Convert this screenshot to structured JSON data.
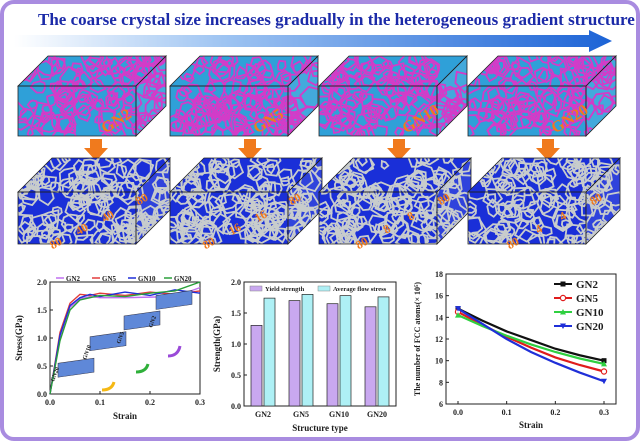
{
  "title": "The coarse crystal size increases gradually in the heterogeneous gradient structure",
  "colors": {
    "grain_top": "#2fa0d8",
    "boundary_top": "#d23cc8",
    "grain_bottom": "#1a2fd8",
    "boundary_bottom": "#c8cccc",
    "accent": "#f07a1d",
    "title": "#1b2aa8"
  },
  "samples": [
    "GN2",
    "GN5",
    "GN10",
    "GN20"
  ],
  "dimensions": [
    [
      "80",
      "40",
      "40",
      "80"
    ],
    [
      "80",
      "16",
      "16",
      "80"
    ],
    [
      "80",
      "8",
      "8",
      "80"
    ],
    [
      "80",
      "4",
      "4",
      "80"
    ]
  ],
  "chart_data": [
    {
      "type": "line",
      "xlabel": "Strain",
      "ylabel": "Stress(GPa)",
      "xlim": [
        0.0,
        0.3
      ],
      "ylim": [
        0.0,
        2.0
      ],
      "xticks": [
        "0.0",
        "0.1",
        "0.2",
        "0.3"
      ],
      "yticks": [
        "0.0",
        "0.5",
        "1.0",
        "1.5",
        "2.0"
      ],
      "series": [
        {
          "name": "GN2",
          "color": "#c070f0",
          "x": [
            0,
            0.02,
            0.04,
            0.06,
            0.08,
            0.1,
            0.15,
            0.2,
            0.25,
            0.3
          ],
          "y": [
            0,
            1.0,
            1.55,
            1.7,
            1.74,
            1.72,
            1.72,
            1.73,
            1.74,
            1.9
          ]
        },
        {
          "name": "GN5",
          "color": "#e23c3c",
          "x": [
            0,
            0.02,
            0.04,
            0.06,
            0.08,
            0.1,
            0.15,
            0.2,
            0.25,
            0.3
          ],
          "y": [
            0,
            1.1,
            1.62,
            1.78,
            1.76,
            1.8,
            1.76,
            1.82,
            1.78,
            1.84
          ]
        },
        {
          "name": "GN10",
          "color": "#1f2fd8",
          "x": [
            0,
            0.02,
            0.04,
            0.06,
            0.08,
            0.1,
            0.15,
            0.2,
            0.25,
            0.3
          ],
          "y": [
            0,
            1.05,
            1.58,
            1.72,
            1.78,
            1.74,
            1.82,
            1.76,
            1.86,
            1.8
          ]
        },
        {
          "name": "GN20",
          "color": "#2aa03a",
          "x": [
            0,
            0.02,
            0.04,
            0.06,
            0.08,
            0.1,
            0.15,
            0.2,
            0.25,
            0.3
          ],
          "y": [
            0,
            0.95,
            1.5,
            1.68,
            1.72,
            1.76,
            1.74,
            1.8,
            1.84,
            2.0
          ]
        }
      ],
      "inset_labels": [
        "GN20",
        "GN10",
        "GN5",
        "GN2"
      ]
    },
    {
      "type": "bar",
      "xlabel": "Structure type",
      "ylabel": "Strength(GPa)",
      "categories": [
        "GN2",
        "GN5",
        "GN10",
        "GN20"
      ],
      "ylim": [
        0.0,
        2.0
      ],
      "yticks": [
        "0.0",
        "0.5",
        "1.0",
        "1.5",
        "2.0"
      ],
      "series": [
        {
          "name": "Yield strength",
          "color": "#c9a8f0",
          "values": [
            1.3,
            1.7,
            1.65,
            1.6
          ]
        },
        {
          "name": "Average flow stress",
          "color": "#aef0f5",
          "values": [
            1.74,
            1.8,
            1.78,
            1.76
          ]
        }
      ]
    },
    {
      "type": "line",
      "xlabel": "Strain",
      "ylabel": "The number of FCC atoms(× 10⁵)",
      "xlim": [
        0.0,
        0.3
      ],
      "ylim": [
        6,
        18
      ],
      "xticks": [
        "0.0",
        "0.1",
        "0.2",
        "0.3"
      ],
      "yticks": [
        "6",
        "8",
        "10",
        "12",
        "14",
        "16",
        "18"
      ],
      "series": [
        {
          "name": "GN2",
          "color": "#111111",
          "marker": "square",
          "x": [
            0,
            0.05,
            0.1,
            0.15,
            0.2,
            0.25,
            0.3
          ],
          "y": [
            14.8,
            13.7,
            12.7,
            11.9,
            11.1,
            10.5,
            10.0
          ]
        },
        {
          "name": "GN5",
          "color": "#e01c1c",
          "marker": "circle",
          "x": [
            0,
            0.05,
            0.1,
            0.15,
            0.2,
            0.25,
            0.3
          ],
          "y": [
            14.5,
            13.3,
            12.2,
            11.2,
            10.3,
            9.6,
            9.0
          ]
        },
        {
          "name": "GN10",
          "color": "#2fd040",
          "marker": "triangle",
          "x": [
            0,
            0.05,
            0.1,
            0.15,
            0.2,
            0.25,
            0.3
          ],
          "y": [
            14.2,
            13.2,
            12.3,
            11.5,
            10.8,
            10.2,
            9.7
          ]
        },
        {
          "name": "GN20",
          "color": "#1f2fd8",
          "marker": "triangle-down",
          "x": [
            0,
            0.05,
            0.1,
            0.15,
            0.2,
            0.25,
            0.3
          ],
          "y": [
            14.8,
            13.4,
            12.0,
            10.8,
            9.8,
            8.9,
            8.1
          ]
        }
      ]
    }
  ]
}
